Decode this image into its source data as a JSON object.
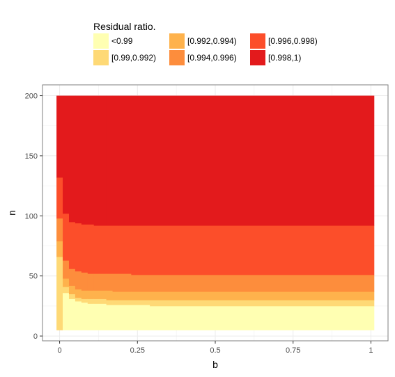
{
  "chart_data": {
    "type": "heatmap",
    "title": "",
    "xlabel": "b",
    "ylabel": "n",
    "xlim": [
      -0.055,
      1.055
    ],
    "ylim": [
      -4,
      209
    ],
    "x_ticks": [
      0,
      0.25,
      0.5,
      0.75,
      1
    ],
    "x_tick_labels": [
      "0",
      "0.25",
      "0.5",
      "0.75",
      "1"
    ],
    "y_ticks": [
      0,
      50,
      100,
      150,
      200
    ],
    "y_tick_labels": [
      "0",
      "50",
      "100",
      "150",
      "200"
    ],
    "grid": true,
    "legend_position": "top",
    "legend": {
      "title": "Residual ratio.",
      "entries": [
        {
          "label": "<0.99",
          "color": "#FFFFB2"
        },
        {
          "label": "[0.99,0.992)",
          "color": "#FED976"
        },
        {
          "label": "[0.992,0.994)",
          "color": "#FEB24C"
        },
        {
          "label": "[0.994,0.996)",
          "color": "#FD8D3C"
        },
        {
          "label": "[0.996,0.998)",
          "color": "#FC4E2A"
        },
        {
          "label": "[0.998,1)",
          "color": "#E31A1C"
        }
      ]
    },
    "n_range": [
      5,
      200
    ],
    "columns": [
      {
        "x0": -0.01,
        "x1": 0.01,
        "b": [
          66,
          79,
          98,
          132
        ]
      },
      {
        "x0": 0.01,
        "x1": 0.03,
        "b": [
          36,
          41,
          48,
          63,
          102
        ]
      },
      {
        "x0": 0.03,
        "x1": 0.05,
        "b": [
          31,
          35,
          42,
          56,
          95
        ]
      },
      {
        "x0": 0.05,
        "x1": 0.07,
        "b": [
          29,
          32,
          39,
          54,
          94
        ]
      },
      {
        "x0": 0.07,
        "x1": 0.09,
        "b": [
          28,
          31,
          38,
          53,
          93
        ]
      },
      {
        "x0": 0.09,
        "x1": 0.11,
        "b": [
          27,
          31,
          38,
          52,
          93
        ]
      },
      {
        "x0": 0.11,
        "x1": 0.13,
        "b": [
          27,
          31,
          38,
          52,
          92
        ]
      },
      {
        "x0": 0.13,
        "x1": 0.15,
        "b": [
          27,
          31,
          38,
          52,
          92
        ]
      },
      {
        "x0": 0.15,
        "x1": 0.17,
        "b": [
          26,
          30,
          38,
          52,
          92
        ]
      },
      {
        "x0": 0.17,
        "x1": 0.19,
        "b": [
          26,
          30,
          37,
          52,
          92
        ]
      },
      {
        "x0": 0.19,
        "x1": 0.23,
        "b": [
          26,
          30,
          37,
          52,
          92
        ]
      },
      {
        "x0": 0.23,
        "x1": 0.29,
        "b": [
          26,
          30,
          37,
          51,
          92
        ]
      },
      {
        "x0": 0.29,
        "x1": 1.01,
        "b": [
          25,
          30,
          37,
          51,
          92
        ]
      }
    ]
  }
}
